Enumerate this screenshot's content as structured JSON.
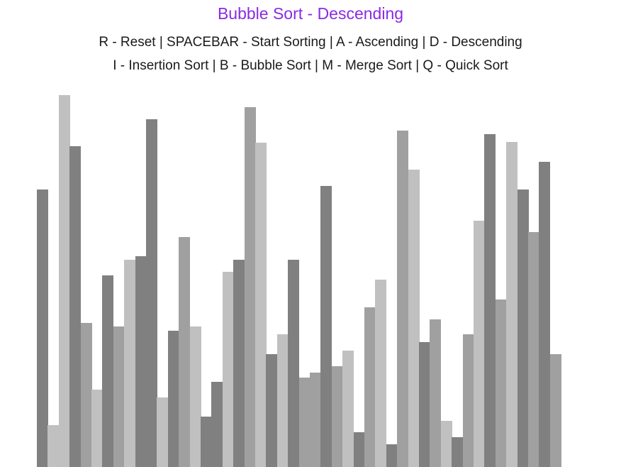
{
  "title": "Bubble Sort - Descending",
  "controls": {
    "line1": "R - Reset | SPACEBAR - Start Sorting | A - Ascending | D - Descending",
    "line2": "I - Insertion Sort | B - Bubble Sort | M - Merge Sort | Q - Quick Sort"
  },
  "colors": {
    "title": "#8a2be2",
    "text": "#1a1a1a",
    "background": "#ffffff",
    "bar_shades": [
      "#808080",
      "#a0a0a0",
      "#c0c0c0"
    ]
  },
  "array": {
    "values": [
      391,
      59,
      524,
      452,
      203,
      109,
      270,
      198,
      292,
      297,
      490,
      98,
      192,
      324,
      198,
      71,
      120,
      275,
      292,
      507,
      457,
      159,
      187,
      292,
      126,
      133,
      396,
      142,
      164,
      49,
      225,
      264,
      32,
      474,
      419,
      176,
      208,
      65,
      42,
      187,
      347,
      469,
      236,
      458,
      391,
      331,
      430,
      159
    ],
    "shade_index": [
      0,
      2,
      2,
      0,
      1,
      2,
      0,
      1,
      2,
      0,
      0,
      2,
      0,
      1,
      2,
      0,
      0,
      2,
      0,
      1,
      2,
      0,
      2,
      0,
      1,
      1,
      0,
      1,
      2,
      0,
      1,
      2,
      0,
      1,
      2,
      0,
      1,
      2,
      0,
      1,
      2,
      0,
      1,
      2,
      0,
      1,
      0,
      1
    ]
  }
}
